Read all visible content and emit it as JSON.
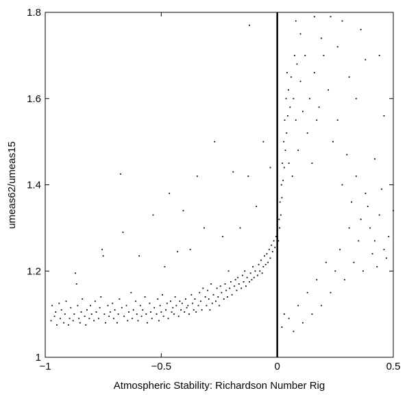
{
  "chart_data": {
    "type": "scatter",
    "title": "",
    "xlabel": "Atmospheric Stability: Richardson Number Rig",
    "ylabel": "umeas62/umeas15",
    "xlim": [
      -1,
      0.5
    ],
    "ylim": [
      1,
      1.8
    ],
    "x_ticks": [
      {
        "value": -1,
        "label": "−1"
      },
      {
        "value": -0.5,
        "label": "−0.5"
      },
      {
        "value": 0,
        "label": "0"
      },
      {
        "value": 0.5,
        "label": "0.5"
      }
    ],
    "y_ticks": [
      {
        "value": 1,
        "label": "1"
      },
      {
        "value": 1.2,
        "label": "1.2"
      },
      {
        "value": 1.4,
        "label": "1.4"
      },
      {
        "value": 1.6,
        "label": "1.6"
      },
      {
        "value": 1.8,
        "label": "1.8"
      }
    ],
    "reference_line": {
      "x": 0
    },
    "marker_color": "#000000",
    "grid": false,
    "points": [
      [
        -0.975,
        1.085
      ],
      [
        -0.97,
        1.12
      ],
      [
        -0.96,
        1.095
      ],
      [
        -0.955,
        1.105
      ],
      [
        -0.95,
        1.075
      ],
      [
        -0.94,
        1.125
      ],
      [
        -0.935,
        1.09
      ],
      [
        -0.93,
        1.11
      ],
      [
        -0.92,
        1.08
      ],
      [
        -0.915,
        1.1
      ],
      [
        -0.91,
        1.13
      ],
      [
        -0.9,
        1.075
      ],
      [
        -0.895,
        1.09
      ],
      [
        -0.89,
        1.115
      ],
      [
        -0.88,
        1.085
      ],
      [
        -0.875,
        1.1
      ],
      [
        -0.87,
        1.195
      ],
      [
        -0.865,
        1.17
      ],
      [
        -0.86,
        1.12
      ],
      [
        -0.855,
        1.09
      ],
      [
        -0.85,
        1.08
      ],
      [
        -0.845,
        1.105
      ],
      [
        -0.84,
        1.135
      ],
      [
        -0.83,
        1.095
      ],
      [
        -0.825,
        1.075
      ],
      [
        -0.82,
        1.11
      ],
      [
        -0.81,
        1.09
      ],
      [
        -0.805,
        1.12
      ],
      [
        -0.8,
        1.1
      ],
      [
        -0.79,
        1.085
      ],
      [
        -0.785,
        1.13
      ],
      [
        -0.78,
        1.105
      ],
      [
        -0.77,
        1.09
      ],
      [
        -0.765,
        1.115
      ],
      [
        -0.76,
        1.14
      ],
      [
        -0.755,
        1.25
      ],
      [
        -0.75,
        1.235
      ],
      [
        -0.745,
        1.1
      ],
      [
        -0.74,
        1.08
      ],
      [
        -0.73,
        1.12
      ],
      [
        -0.725,
        1.095
      ],
      [
        -0.72,
        1.105
      ],
      [
        -0.71,
        1.125
      ],
      [
        -0.705,
        1.09
      ],
      [
        -0.7,
        1.11
      ],
      [
        -0.69,
        1.08
      ],
      [
        -0.685,
        1.1
      ],
      [
        -0.68,
        1.135
      ],
      [
        -0.675,
        1.425
      ],
      [
        -0.67,
        1.115
      ],
      [
        -0.665,
        1.29
      ],
      [
        -0.66,
        1.095
      ],
      [
        -0.65,
        1.12
      ],
      [
        -0.645,
        1.085
      ],
      [
        -0.64,
        1.105
      ],
      [
        -0.63,
        1.15
      ],
      [
        -0.625,
        1.09
      ],
      [
        -0.62,
        1.11
      ],
      [
        -0.61,
        1.13
      ],
      [
        -0.605,
        1.1
      ],
      [
        -0.6,
        1.085
      ],
      [
        -0.595,
        1.235
      ],
      [
        -0.59,
        1.12
      ],
      [
        -0.585,
        1.095
      ],
      [
        -0.58,
        1.11
      ],
      [
        -0.57,
        1.14
      ],
      [
        -0.565,
        1.1
      ],
      [
        -0.56,
        1.08
      ],
      [
        -0.55,
        1.125
      ],
      [
        -0.545,
        1.105
      ],
      [
        -0.54,
        1.09
      ],
      [
        -0.535,
        1.33
      ],
      [
        -0.53,
        1.115
      ],
      [
        -0.52,
        1.1
      ],
      [
        -0.515,
        1.135
      ],
      [
        -0.51,
        1.085
      ],
      [
        -0.505,
        1.12
      ],
      [
        -0.5,
        1.105
      ],
      [
        -0.495,
        1.145
      ],
      [
        -0.49,
        1.095
      ],
      [
        -0.485,
        1.21
      ],
      [
        -0.48,
        1.11
      ],
      [
        -0.475,
        1.125
      ],
      [
        -0.47,
        1.09
      ],
      [
        -0.465,
        1.38
      ],
      [
        -0.46,
        1.13
      ],
      [
        -0.455,
        1.105
      ],
      [
        -0.45,
        1.115
      ],
      [
        -0.445,
        1.1
      ],
      [
        -0.44,
        1.14
      ],
      [
        -0.435,
        1.12
      ],
      [
        -0.43,
        1.245
      ],
      [
        -0.425,
        1.095
      ],
      [
        -0.42,
        1.13
      ],
      [
        -0.415,
        1.11
      ],
      [
        -0.41,
        1.125
      ],
      [
        -0.405,
        1.34
      ],
      [
        -0.4,
        1.105
      ],
      [
        -0.395,
        1.135
      ],
      [
        -0.39,
        1.115
      ],
      [
        -0.385,
        1.12
      ],
      [
        -0.38,
        1.1
      ],
      [
        -0.375,
        1.25
      ],
      [
        -0.37,
        1.145
      ],
      [
        -0.365,
        1.125
      ],
      [
        -0.36,
        1.11
      ],
      [
        -0.355,
        1.135
      ],
      [
        -0.35,
        1.105
      ],
      [
        -0.345,
        1.42
      ],
      [
        -0.34,
        1.12
      ],
      [
        -0.335,
        1.15
      ],
      [
        -0.33,
        1.13
      ],
      [
        -0.325,
        1.11
      ],
      [
        -0.32,
        1.16
      ],
      [
        -0.315,
        1.3
      ],
      [
        -0.31,
        1.14
      ],
      [
        -0.305,
        1.12
      ],
      [
        -0.3,
        1.155
      ],
      [
        -0.295,
        1.135
      ],
      [
        -0.29,
        1.11
      ],
      [
        -0.285,
        1.17
      ],
      [
        -0.28,
        1.125
      ],
      [
        -0.275,
        1.145
      ],
      [
        -0.27,
        1.5
      ],
      [
        -0.265,
        1.13
      ],
      [
        -0.26,
        1.16
      ],
      [
        -0.255,
        1.14
      ],
      [
        -0.25,
        1.12
      ],
      [
        -0.245,
        1.165
      ],
      [
        -0.24,
        1.15
      ],
      [
        -0.235,
        1.28
      ],
      [
        -0.23,
        1.135
      ],
      [
        -0.225,
        1.17
      ],
      [
        -0.22,
        1.155
      ],
      [
        -0.215,
        1.14
      ],
      [
        -0.21,
        1.2
      ],
      [
        -0.205,
        1.16
      ],
      [
        -0.2,
        1.175
      ],
      [
        -0.195,
        1.145
      ],
      [
        -0.19,
        1.43
      ],
      [
        -0.185,
        1.165
      ],
      [
        -0.18,
        1.18
      ],
      [
        -0.175,
        1.155
      ],
      [
        -0.17,
        1.185
      ],
      [
        -0.165,
        1.17
      ],
      [
        -0.16,
        1.3
      ],
      [
        -0.155,
        1.16
      ],
      [
        -0.15,
        1.19
      ],
      [
        -0.145,
        1.175
      ],
      [
        -0.14,
        1.2
      ],
      [
        -0.135,
        1.165
      ],
      [
        -0.13,
        1.185
      ],
      [
        -0.125,
        1.42
      ],
      [
        -0.12,
        1.175
      ],
      [
        -0.115,
        1.195
      ],
      [
        -0.11,
        1.18
      ],
      [
        -0.105,
        1.21
      ],
      [
        -0.1,
        1.185
      ],
      [
        -0.095,
        1.2
      ],
      [
        -0.09,
        1.35
      ],
      [
        -0.085,
        1.19
      ],
      [
        -0.08,
        1.215
      ],
      [
        -0.075,
        1.2
      ],
      [
        -0.07,
        1.225
      ],
      [
        -0.065,
        1.195
      ],
      [
        -0.06,
        1.21
      ],
      [
        -0.055,
        1.235
      ],
      [
        -0.05,
        1.215
      ],
      [
        -0.045,
        1.24
      ],
      [
        -0.04,
        1.22
      ],
      [
        -0.035,
        1.25
      ],
      [
        -0.03,
        1.23
      ],
      [
        -0.025,
        1.26
      ],
      [
        -0.02,
        1.245
      ],
      [
        -0.015,
        1.27
      ],
      [
        -0.01,
        1.255
      ],
      [
        -0.005,
        1.28
      ],
      [
        -0.12,
        1.77
      ],
      [
        -0.06,
        1.5
      ],
      [
        -0.03,
        1.44
      ],
      [
        0.005,
        1.27
      ],
      [
        0.008,
        1.32
      ],
      [
        0.01,
        1.3
      ],
      [
        0.012,
        1.36
      ],
      [
        0.015,
        1.33
      ],
      [
        0.018,
        1.4
      ],
      [
        0.02,
        1.37
      ],
      [
        0.022,
        1.45
      ],
      [
        0.025,
        1.41
      ],
      [
        0.028,
        1.5
      ],
      [
        0.03,
        1.44
      ],
      [
        0.032,
        1.55
      ],
      [
        0.035,
        1.48
      ],
      [
        0.038,
        1.6
      ],
      [
        0.04,
        1.52
      ],
      [
        0.042,
        1.66
      ],
      [
        0.045,
        1.56
      ],
      [
        0.048,
        1.62
      ],
      [
        0.05,
        1.45
      ],
      [
        0.055,
        1.58
      ],
      [
        0.06,
        1.65
      ],
      [
        0.065,
        1.42
      ],
      [
        0.07,
        1.6
      ],
      [
        0.075,
        1.7
      ],
      [
        0.08,
        1.55
      ],
      [
        0.085,
        1.68
      ],
      [
        0.09,
        1.48
      ],
      [
        0.1,
        1.64
      ],
      [
        0.11,
        1.57
      ],
      [
        0.12,
        1.7
      ],
      [
        0.13,
        1.52
      ],
      [
        0.14,
        1.6
      ],
      [
        0.15,
        1.45
      ],
      [
        0.16,
        1.66
      ],
      [
        0.17,
        1.55
      ],
      [
        0.18,
        1.58
      ],
      [
        0.2,
        1.7
      ],
      [
        0.22,
        1.62
      ],
      [
        0.24,
        1.5
      ],
      [
        0.26,
        1.55
      ],
      [
        0.28,
        1.4
      ],
      [
        0.3,
        1.47
      ],
      [
        0.32,
        1.36
      ],
      [
        0.34,
        1.42
      ],
      [
        0.36,
        1.32
      ],
      [
        0.38,
        1.38
      ],
      [
        0.4,
        1.3
      ],
      [
        0.42,
        1.27
      ],
      [
        0.44,
        1.33
      ],
      [
        0.46,
        1.25
      ],
      [
        0.48,
        1.28
      ],
      [
        0.5,
        1.34
      ],
      [
        0.47,
        1.23
      ],
      [
        0.45,
        1.39
      ],
      [
        0.43,
        1.21
      ],
      [
        0.41,
        1.24
      ],
      [
        0.39,
        1.35
      ],
      [
        0.37,
        1.2
      ],
      [
        0.35,
        1.27
      ],
      [
        0.33,
        1.22
      ],
      [
        0.31,
        1.3
      ],
      [
        0.29,
        1.18
      ],
      [
        0.27,
        1.25
      ],
      [
        0.25,
        1.2
      ],
      [
        0.23,
        1.15
      ],
      [
        0.21,
        1.22
      ],
      [
        0.19,
        1.12
      ],
      [
        0.17,
        1.18
      ],
      [
        0.15,
        1.1
      ],
      [
        0.13,
        1.15
      ],
      [
        0.11,
        1.08
      ],
      [
        0.09,
        1.12
      ],
      [
        0.07,
        1.06
      ],
      [
        0.05,
        1.09
      ],
      [
        0.03,
        1.1
      ],
      [
        0.02,
        1.07
      ],
      [
        0.23,
        1.79
      ],
      [
        0.28,
        1.78
      ],
      [
        0.36,
        1.76
      ],
      [
        0.16,
        1.79
      ],
      [
        0.44,
        1.7
      ],
      [
        0.38,
        1.69
      ],
      [
        0.26,
        1.72
      ],
      [
        0.34,
        1.6
      ],
      [
        0.46,
        1.56
      ],
      [
        0.31,
        1.65
      ],
      [
        0.1,
        1.75
      ],
      [
        0.19,
        1.74
      ],
      [
        0.08,
        1.78
      ],
      [
        0.42,
        1.46
      ]
    ]
  }
}
